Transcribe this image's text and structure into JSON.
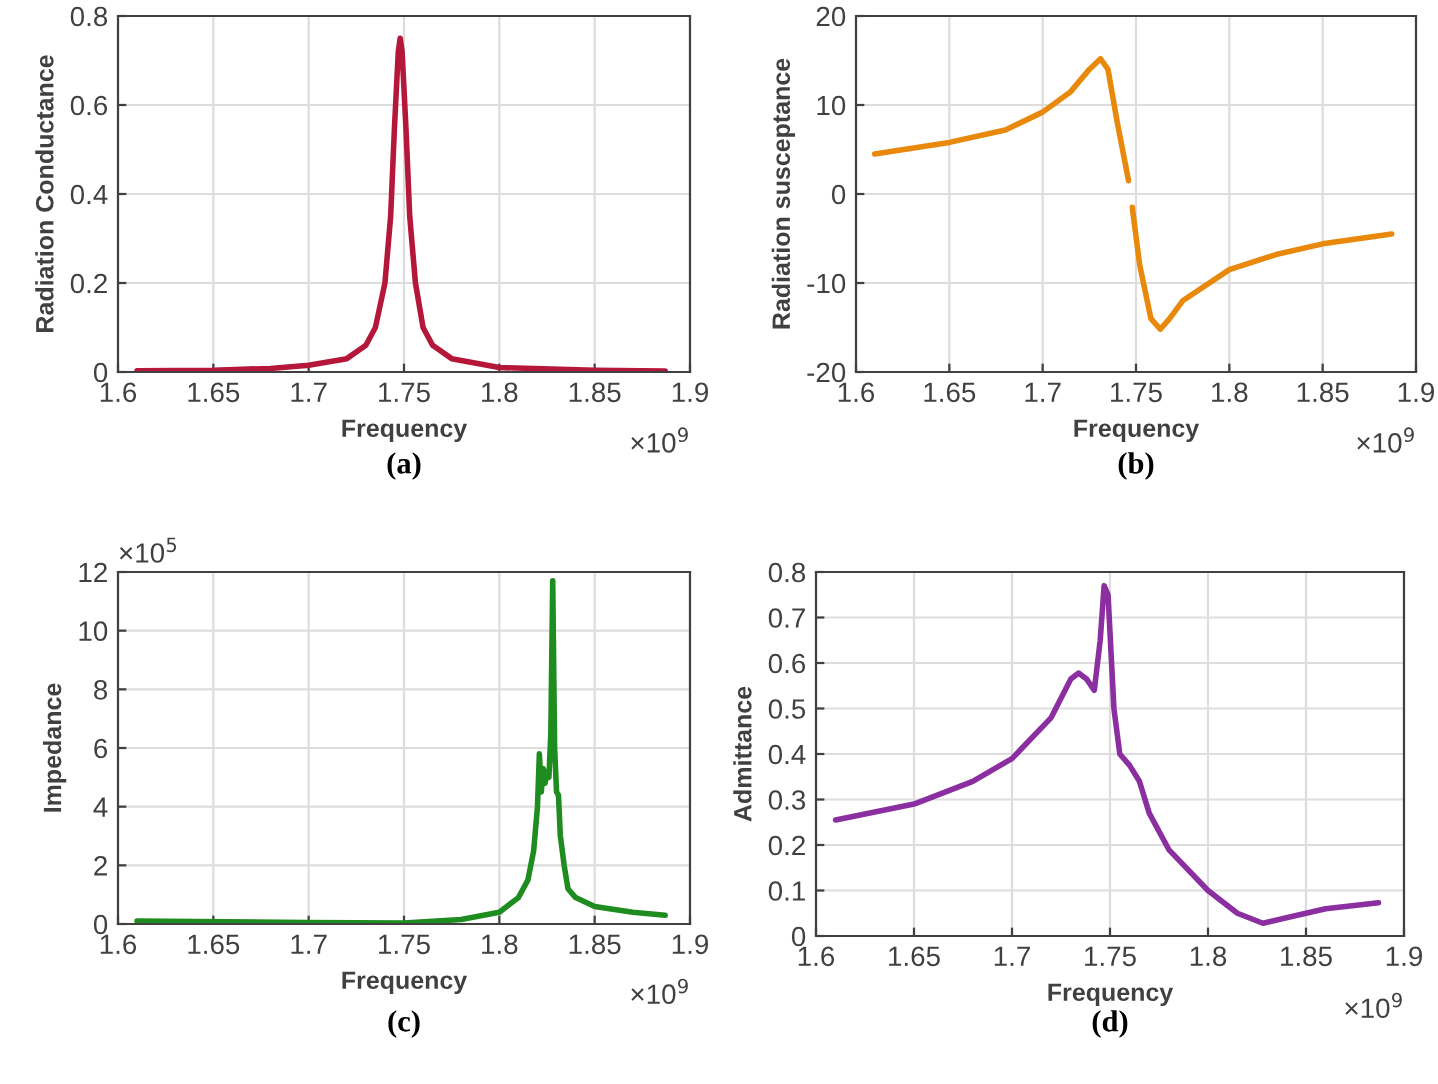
{
  "chart_data": [
    {
      "type": "line",
      "title": "(a)",
      "xlabel": "Frequency",
      "ylabel": "Radiation Conductance",
      "grid": true,
      "annotations": [
        "×10$^{9}$"
      ],
      "xlim": [
        1.6,
        1.9
      ],
      "xticks": [
        1.6,
        1.65,
        1.7,
        1.75,
        1.8,
        1.85,
        1.9
      ],
      "ylim": [
        0,
        0.8
      ],
      "yticks": [
        0,
        0.2,
        0.4,
        0.6,
        0.8
      ],
      "x": [
        1.61,
        1.65,
        1.68,
        1.7,
        1.72,
        1.73,
        1.735,
        1.74,
        1.743,
        1.745,
        1.747,
        1.748,
        1.749,
        1.751,
        1.753,
        1.756,
        1.76,
        1.765,
        1.775,
        1.8,
        1.85,
        1.887
      ],
      "series": [
        {
          "color": "#b5173a",
          "values": [
            0.003,
            0.004,
            0.008,
            0.015,
            0.03,
            0.06,
            0.1,
            0.2,
            0.35,
            0.55,
            0.72,
            0.75,
            0.72,
            0.55,
            0.35,
            0.2,
            0.1,
            0.06,
            0.03,
            0.01,
            0.004,
            0.002
          ]
        }
      ]
    },
    {
      "type": "line",
      "title": "(b)",
      "xlabel": "Frequency",
      "ylabel": "Radiation susceptance",
      "grid": true,
      "annotations": [
        "×10$^{9}$"
      ],
      "xlim": [
        1.6,
        1.9
      ],
      "xticks": [
        1.6,
        1.65,
        1.7,
        1.75,
        1.8,
        1.85,
        1.9
      ],
      "ylim": [
        -20,
        20
      ],
      "yticks": [
        -20,
        -10,
        0,
        10,
        20
      ],
      "x": [
        1.61,
        1.65,
        1.68,
        1.7,
        1.715,
        1.725,
        1.731,
        1.735,
        1.74,
        1.746,
        1.747,
        1.748,
        1.752,
        1.758,
        1.763,
        1.768,
        1.775,
        1.8,
        1.825,
        1.85,
        1.887
      ],
      "series": [
        {
          "color": "#e8890c",
          "values": [
            4.5,
            5.8,
            7.2,
            9.2,
            11.5,
            14,
            15.2,
            14,
            8,
            1.5,
            null,
            -1.5,
            -8,
            -14,
            -15.2,
            -14,
            -12,
            -8.5,
            -6.8,
            -5.6,
            -4.5
          ]
        }
      ]
    },
    {
      "type": "line",
      "title": "(c)",
      "xlabel": "Frequency",
      "ylabel": "Impedance",
      "grid": true,
      "annotations": [
        "×10$^{5}$",
        "×10$^{9}$"
      ],
      "xlim": [
        1.6,
        1.9
      ],
      "xticks": [
        1.6,
        1.65,
        1.7,
        1.75,
        1.8,
        1.85,
        1.9
      ],
      "ylim": [
        0,
        12
      ],
      "yticks": [
        0,
        2,
        4,
        6,
        8,
        10,
        12
      ],
      "x": [
        1.61,
        1.7,
        1.75,
        1.78,
        1.8,
        1.81,
        1.815,
        1.818,
        1.82,
        1.821,
        1.822,
        1.823,
        1.824,
        1.825,
        1.826,
        1.827,
        1.828,
        1.829,
        1.83,
        1.831,
        1.832,
        1.834,
        1.836,
        1.84,
        1.85,
        1.87,
        1.887
      ],
      "series": [
        {
          "color": "#1e8c1e",
          "values": [
            0.1,
            0.05,
            0.03,
            0.15,
            0.4,
            0.9,
            1.5,
            2.5,
            4,
            5.8,
            4.5,
            5.3,
            4.8,
            5.2,
            5,
            6.5,
            11.7,
            6,
            4.5,
            4.4,
            3,
            2,
            1.2,
            0.9,
            0.6,
            0.4,
            0.3
          ]
        }
      ]
    },
    {
      "type": "line",
      "title": "(d)",
      "xlabel": "Frequency",
      "ylabel": "Admittance",
      "grid": true,
      "annotations": [
        "×10$^{9}$"
      ],
      "xlim": [
        1.6,
        1.9
      ],
      "xticks": [
        1.6,
        1.65,
        1.7,
        1.75,
        1.8,
        1.85,
        1.9
      ],
      "ylim": [
        0,
        0.8
      ],
      "yticks": [
        0,
        0.1,
        0.2,
        0.3,
        0.4,
        0.5,
        0.6,
        0.7,
        0.8
      ],
      "x": [
        1.61,
        1.65,
        1.68,
        1.7,
        1.72,
        1.73,
        1.734,
        1.738,
        1.742,
        1.745,
        1.747,
        1.749,
        1.752,
        1.755,
        1.76,
        1.765,
        1.77,
        1.78,
        1.8,
        1.815,
        1.828,
        1.84,
        1.86,
        1.887
      ],
      "series": [
        {
          "color": "#8a2ea0",
          "values": [
            0.255,
            0.29,
            0.34,
            0.39,
            0.48,
            0.565,
            0.578,
            0.565,
            0.54,
            0.65,
            0.77,
            0.75,
            0.5,
            0.4,
            0.375,
            0.34,
            0.27,
            0.19,
            0.1,
            0.05,
            0.028,
            0.04,
            0.06,
            0.073
          ]
        }
      ]
    }
  ]
}
